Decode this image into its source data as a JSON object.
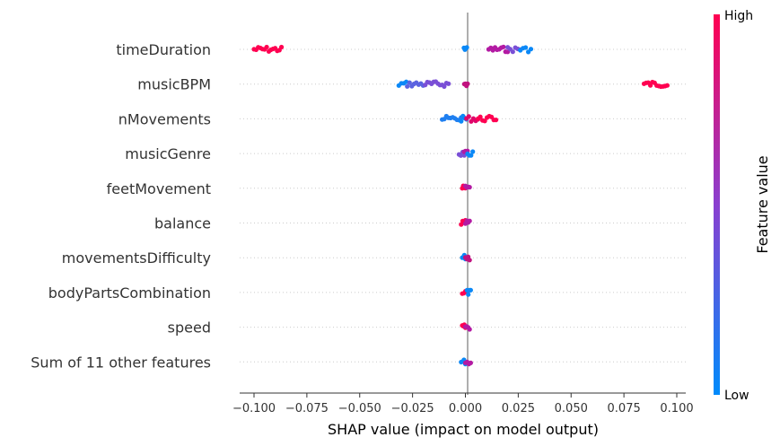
{
  "chart_data": {
    "type": "scatter",
    "subtype": "shap-beeswarm",
    "xlabel": "SHAP value (impact on model output)",
    "xlim": [
      -0.11,
      0.105
    ],
    "xticks": [
      -0.1,
      -0.075,
      -0.05,
      -0.025,
      0.0,
      0.025,
      0.05,
      0.075,
      0.1
    ],
    "xtick_labels": [
      "−0.100",
      "−0.075",
      "−0.050",
      "−0.025",
      "0.000",
      "0.025",
      "0.050",
      "0.075",
      "0.100"
    ],
    "grid": false,
    "colorbar": {
      "label": "Feature value",
      "high_label": "High",
      "low_label": "Low",
      "low_color": "#008bfb",
      "high_color": "#ff0051"
    },
    "features": [
      {
        "name": "timeDuration",
        "clusters": [
          {
            "min": -0.1,
            "max": -0.087,
            "color": "#ff0051"
          },
          {
            "min": 0.011,
            "max": 0.02,
            "color": "#b31aa3"
          },
          {
            "min": 0.02,
            "max": 0.026,
            "color": "#7a4fd6"
          },
          {
            "min": 0.026,
            "max": 0.031,
            "color": "#0a88f7"
          },
          {
            "min": -0.0007,
            "max": 0.0007,
            "color": "#0a88f7"
          }
        ]
      },
      {
        "name": "musicBPM",
        "clusters": [
          {
            "min": -0.0315,
            "max": -0.028,
            "color": "#0a88f7"
          },
          {
            "min": -0.0275,
            "max": -0.02,
            "color": "#5b63e0"
          },
          {
            "min": -0.019,
            "max": -0.008,
            "color": "#7a4fd6"
          },
          {
            "min": -0.0005,
            "max": 0.001,
            "color": "#c1127f"
          },
          {
            "min": 0.0845,
            "max": 0.0955,
            "color": "#ff0051"
          }
        ]
      },
      {
        "name": "nMovements",
        "clusters": [
          {
            "min": -0.011,
            "max": -0.002,
            "color": "#1f7ff0"
          },
          {
            "min": -0.002,
            "max": 0.0005,
            "color": "#0a88f7"
          },
          {
            "min": 0.0005,
            "max": 0.006,
            "color": "#e0056a"
          },
          {
            "min": 0.006,
            "max": 0.0145,
            "color": "#ff0051"
          }
        ]
      },
      {
        "name": "musicGenre",
        "clusters": [
          {
            "min": -0.003,
            "max": -0.0005,
            "color": "#7a4fd6"
          },
          {
            "min": -0.0005,
            "max": 0.001,
            "color": "#b31aa3"
          },
          {
            "min": 0.001,
            "max": 0.0035,
            "color": "#0a88f7"
          }
        ]
      },
      {
        "name": "feetMovement",
        "clusters": [
          {
            "min": -0.0015,
            "max": 0.0,
            "color": "#ff0051"
          },
          {
            "min": 0.0,
            "max": 0.002,
            "color": "#b31aa3"
          }
        ]
      },
      {
        "name": "balance",
        "clusters": [
          {
            "min": -0.002,
            "max": 0.0,
            "color": "#ff0051"
          },
          {
            "min": 0.0,
            "max": 0.002,
            "color": "#b31aa3"
          }
        ]
      },
      {
        "name": "movementsDifficulty",
        "clusters": [
          {
            "min": -0.0015,
            "max": 0.0,
            "color": "#0a88f7"
          },
          {
            "min": 0.0,
            "max": 0.002,
            "color": "#c1127f"
          }
        ]
      },
      {
        "name": "bodyPartsCombination",
        "clusters": [
          {
            "min": -0.0015,
            "max": 0.0008,
            "color": "#ff0051"
          },
          {
            "min": 0.0008,
            "max": 0.0025,
            "color": "#0a88f7"
          }
        ]
      },
      {
        "name": "speed",
        "clusters": [
          {
            "min": -0.0015,
            "max": 0.0,
            "color": "#ff0051"
          },
          {
            "min": 0.0,
            "max": 0.002,
            "color": "#b31aa3"
          }
        ]
      },
      {
        "name": "Sum of 11 other features",
        "clusters": [
          {
            "min": -0.002,
            "max": 0.0,
            "color": "#0a88f7"
          },
          {
            "min": 0.0,
            "max": 0.0025,
            "color": "#b31aa3"
          }
        ]
      }
    ]
  }
}
